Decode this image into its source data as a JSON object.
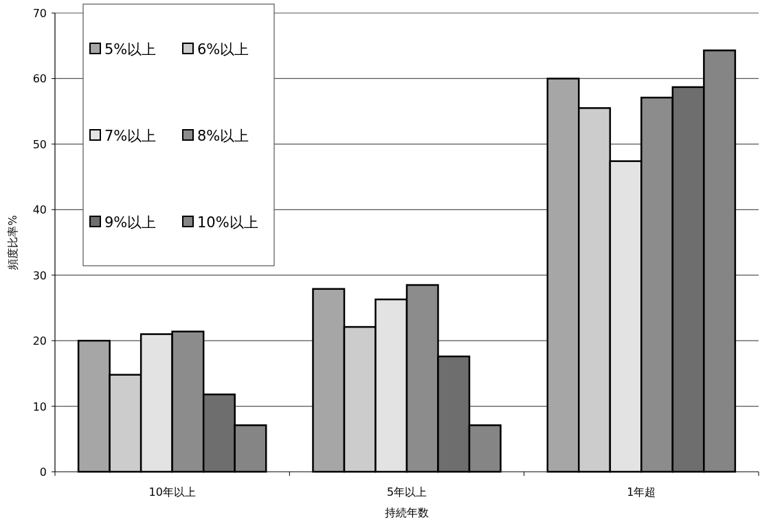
{
  "chart_data": {
    "type": "bar",
    "xlabel": "持続年数",
    "ylabel": "頻度比率%",
    "categories": [
      "10年以上",
      "5年以上",
      "1年超"
    ],
    "series": [
      {
        "name": "5%以上",
        "color": "#a6a6a6",
        "values": [
          20.0,
          27.9,
          60.0
        ]
      },
      {
        "name": "6%以上",
        "color": "#cccccc",
        "values": [
          14.8,
          22.1,
          55.5
        ]
      },
      {
        "name": "7%以上",
        "color": "#e3e3e3",
        "values": [
          21.0,
          26.3,
          47.4
        ]
      },
      {
        "name": "8%以上",
        "color": "#8c8c8c",
        "values": [
          21.4,
          28.5,
          57.1
        ]
      },
      {
        "name": "9%以上",
        "color": "#6e6e6e",
        "values": [
          11.8,
          17.6,
          58.7
        ]
      },
      {
        "name": "10%以上",
        "color": "#858585",
        "values": [
          7.1,
          7.1,
          64.3
        ]
      }
    ],
    "ylim": [
      0,
      70
    ],
    "yticks": [
      0,
      10,
      20,
      30,
      40,
      50,
      60,
      70
    ],
    "grid": "y",
    "legend": "top left"
  }
}
